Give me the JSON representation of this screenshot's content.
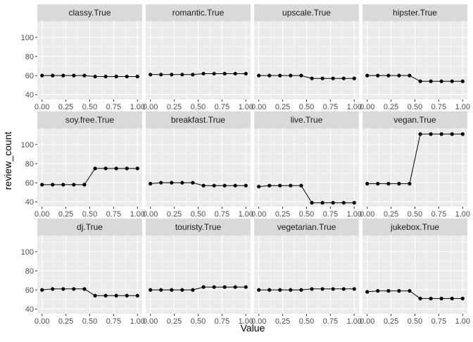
{
  "chart_data": {
    "type": "line",
    "facet_layout": "3x4 grid, shared axes",
    "xlabel": "Value",
    "ylabel": "review_count",
    "xlim": [
      0,
      1
    ],
    "ylim": [
      35,
      117
    ],
    "x_ticks": [
      0,
      0.25,
      0.5,
      0.75,
      1
    ],
    "x_tick_labels": [
      "0.00",
      "0.25",
      "0.50",
      "0.75",
      "1.00"
    ],
    "y_ticks": [
      40,
      60,
      80,
      100
    ],
    "y_tick_labels": [
      "40",
      "60",
      "80",
      "100"
    ],
    "x": [
      0,
      0.111,
      0.222,
      0.333,
      0.444,
      0.556,
      0.667,
      0.778,
      0.889,
      1.0
    ],
    "grid": true,
    "panel_background": "#ebebeb",
    "strip_background": "#d9d9d9",
    "point_color": "#000000",
    "line_color": "#000000",
    "panels": [
      {
        "title": "classy.True",
        "values": [
          60,
          60,
          60,
          60,
          60,
          59,
          59,
          59,
          59,
          59
        ]
      },
      {
        "title": "romantic.True",
        "values": [
          61,
          61,
          61,
          61,
          61,
          62,
          62,
          62,
          62,
          62
        ]
      },
      {
        "title": "upscale.True",
        "values": [
          60,
          60,
          60,
          60,
          60,
          57,
          57,
          57,
          57,
          57
        ]
      },
      {
        "title": "hipster.True",
        "values": [
          60,
          60,
          60,
          60,
          60,
          54,
          54,
          54,
          54,
          54
        ]
      },
      {
        "title": "soy.free.True",
        "values": [
          58,
          58,
          58,
          58,
          58,
          75,
          75,
          75,
          75,
          75
        ]
      },
      {
        "title": "breakfast.True",
        "values": [
          59,
          60,
          60,
          60,
          60,
          57,
          57,
          57,
          57,
          57
        ]
      },
      {
        "title": "live.True",
        "values": [
          56,
          57,
          57,
          57,
          57,
          39,
          39,
          39,
          39,
          39
        ]
      },
      {
        "title": "vegan.True",
        "values": [
          59,
          59,
          59,
          59,
          59,
          111,
          111,
          111,
          111,
          111
        ]
      },
      {
        "title": "dj.True",
        "values": [
          60,
          61,
          61,
          61,
          61,
          54,
          54,
          54,
          54,
          54
        ]
      },
      {
        "title": "touristy.True",
        "values": [
          60,
          60,
          60,
          60,
          60,
          63,
          63,
          63,
          63,
          63
        ]
      },
      {
        "title": "vegetarian.True",
        "values": [
          60,
          60,
          60,
          60,
          60,
          61,
          61,
          61,
          61,
          61
        ]
      },
      {
        "title": "jukebox.True",
        "values": [
          58,
          59,
          59,
          59,
          59,
          51,
          51,
          51,
          51,
          51
        ]
      }
    ]
  }
}
